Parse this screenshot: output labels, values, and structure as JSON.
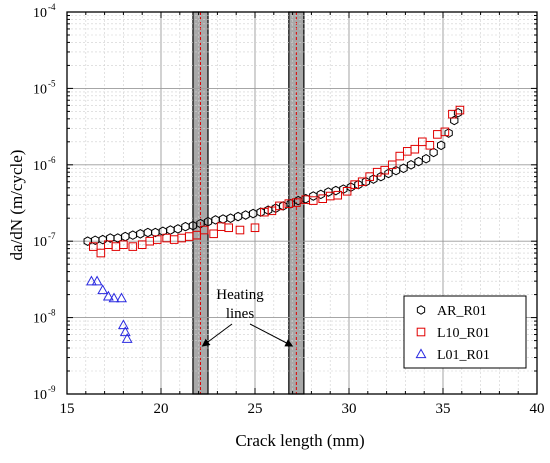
{
  "chart_data": {
    "type": "scatter",
    "xlabel": "Crack length (mm)",
    "ylabel": "da/dN (m/cycle)",
    "xlim": [
      15,
      40
    ],
    "ylim": [
      1e-09,
      0.0001
    ],
    "yscale": "log",
    "grid": true,
    "legend_position": "bottom-right",
    "x_ticks": [
      "15",
      "20",
      "25",
      "30",
      "35",
      "40"
    ],
    "y_ticks": [
      {
        "base": "10",
        "exp": "-9"
      },
      {
        "base": "10",
        "exp": "-8"
      },
      {
        "base": "10",
        "exp": "-7"
      },
      {
        "base": "10",
        "exp": "-6"
      },
      {
        "base": "10",
        "exp": "-5"
      },
      {
        "base": "10",
        "exp": "-4"
      }
    ],
    "series": [
      {
        "name": "AR_R01",
        "marker": "hexagon",
        "color": "#000000",
        "x": [
          16.1,
          16.5,
          16.9,
          17.3,
          17.7,
          18.1,
          18.5,
          18.9,
          19.3,
          19.7,
          20.1,
          20.5,
          20.9,
          21.3,
          21.7,
          22.1,
          22.5,
          22.9,
          23.3,
          23.7,
          24.1,
          24.5,
          24.9,
          25.3,
          25.7,
          26.1,
          26.5,
          26.9,
          27.3,
          27.7,
          28.1,
          28.5,
          28.9,
          29.3,
          29.7,
          30.1,
          30.5,
          30.9,
          31.3,
          31.7,
          32.1,
          32.5,
          32.9,
          33.3,
          33.7,
          34.1,
          34.5,
          34.9,
          35.3,
          35.6,
          35.8
        ],
        "y": [
          1e-07,
          1.03e-07,
          1.05e-07,
          1.1e-07,
          1.1e-07,
          1.15e-07,
          1.2e-07,
          1.25e-07,
          1.3e-07,
          1.3e-07,
          1.35e-07,
          1.4e-07,
          1.45e-07,
          1.55e-07,
          1.6e-07,
          1.7e-07,
          1.8e-07,
          1.9e-07,
          1.95e-07,
          2e-07,
          2.1e-07,
          2.2e-07,
          2.3e-07,
          2.4e-07,
          2.55e-07,
          2.7e-07,
          2.9e-07,
          3.1e-07,
          3.4e-07,
          3.6e-07,
          3.9e-07,
          4.1e-07,
          4.4e-07,
          4.6e-07,
          4.8e-07,
          5.1e-07,
          5.5e-07,
          6e-07,
          6.5e-07,
          7e-07,
          7.7e-07,
          8.4e-07,
          9e-07,
          1e-06,
          1.1e-06,
          1.2e-06,
          1.45e-06,
          1.8e-06,
          2.6e-06,
          3.8e-06,
          4.8e-06
        ]
      },
      {
        "name": "L10_R01",
        "marker": "square",
        "color": "#e00000",
        "x": [
          16.4,
          16.8,
          17.2,
          17.6,
          18.0,
          18.5,
          19.0,
          19.4,
          19.8,
          20.3,
          20.7,
          21.1,
          21.5,
          21.9,
          22.3,
          22.8,
          23.2,
          23.6,
          24.2,
          25.0,
          25.5,
          25.9,
          26.3,
          26.8,
          27.2,
          27.7,
          28.1,
          28.6,
          29.0,
          29.4,
          29.9,
          30.3,
          30.7,
          31.1,
          31.5,
          31.9,
          32.3,
          32.7,
          33.1,
          33.5,
          33.9,
          34.3,
          34.7,
          35.1,
          35.5,
          35.9
        ],
        "y": [
          8.5e-08,
          7e-08,
          9e-08,
          8.5e-08,
          9e-08,
          8.5e-08,
          9e-08,
          1e-07,
          1.05e-07,
          1.1e-07,
          1.05e-07,
          1.1e-07,
          1.15e-07,
          1.2e-07,
          1.4e-07,
          1.25e-07,
          1.55e-07,
          1.5e-07,
          1.4e-07,
          1.5e-07,
          2.4e-07,
          2.5e-07,
          2.9e-07,
          3.1e-07,
          3.2e-07,
          3.5e-07,
          3.4e-07,
          3.6e-07,
          3.9e-07,
          4e-07,
          4.5e-07,
          5.5e-07,
          6e-07,
          7e-07,
          8e-07,
          8.5e-07,
          1e-06,
          1.3e-06,
          1.5e-06,
          1.6e-06,
          2e-06,
          1.8e-06,
          2.5e-06,
          2.7e-06,
          4.6e-06,
          5.2e-06
        ]
      },
      {
        "name": "L01_R01",
        "marker": "triangle",
        "color": "#2a2ae0",
        "x": [
          16.3,
          16.6,
          16.9,
          17.2,
          17.5,
          17.9,
          18.0,
          18.1,
          18.2
        ],
        "y": [
          3e-08,
          3e-08,
          2.3e-08,
          1.9e-08,
          1.8e-08,
          1.8e-08,
          8e-09,
          6.5e-09,
          5.3e-09
        ]
      }
    ],
    "annotation": {
      "lines": [
        "Heating",
        "lines"
      ]
    },
    "heating_bands": [
      {
        "x_from": 21.7,
        "x_to": 22.5,
        "center": 22.1
      },
      {
        "x_from": 26.8,
        "x_to": 27.6,
        "center": 27.2
      }
    ]
  }
}
